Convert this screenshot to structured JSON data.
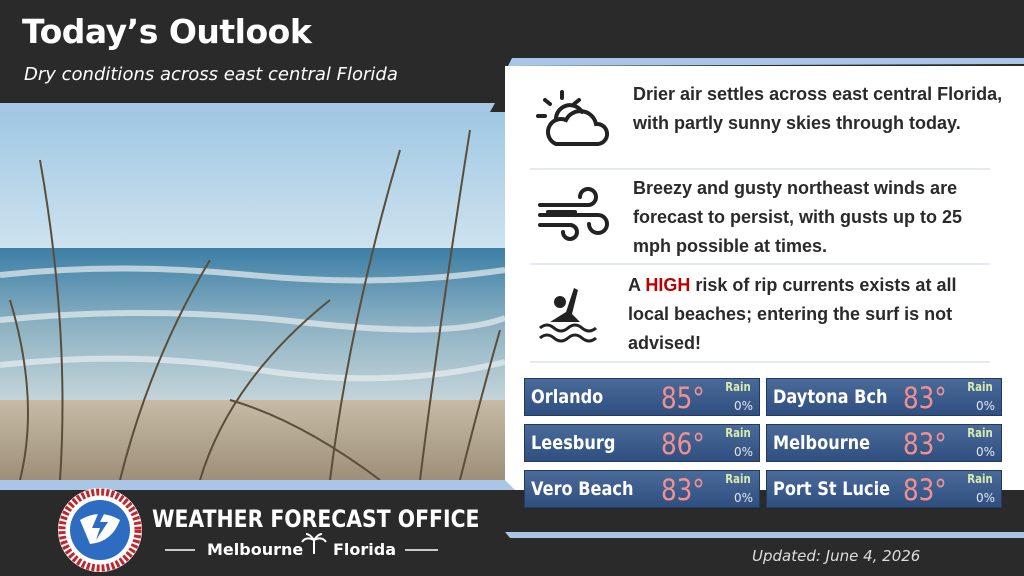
{
  "header": {
    "title": "Today’s Outlook",
    "subtitle": "Dry conditions across east central Florida"
  },
  "statements": [
    {
      "text": "Drier air settles across east central Florida, with partly sunny skies through today."
    },
    {
      "text": "Breezy and gusty northeast winds are forecast to persist, with gusts up to 25 mph possible at times."
    },
    {
      "before": "A ",
      "highlight": "HIGH",
      "after": " risk of rip currents exists at all local beaches; entering the surf is not advised!"
    }
  ],
  "cities": [
    {
      "name": "Orlando",
      "temp": "85°",
      "rain_label": "Rain",
      "rain": "0%"
    },
    {
      "name": "Daytona Bch",
      "temp": "83°",
      "rain_label": "Rain",
      "rain": "0%"
    },
    {
      "name": "Leesburg",
      "temp": "86°",
      "rain_label": "Rain",
      "rain": "0%"
    },
    {
      "name": "Melbourne",
      "temp": "83°",
      "rain_label": "Rain",
      "rain": "0%"
    },
    {
      "name": "Vero Beach",
      "temp": "83°",
      "rain_label": "Rain",
      "rain": "0%"
    },
    {
      "name": "Port St Lucie",
      "temp": "83°",
      "rain_label": "Rain",
      "rain": "0%"
    }
  ],
  "footer": {
    "office": "WEATHER FORECAST OFFICE",
    "city": "Melbourne",
    "state": "Florida",
    "updated": "Updated: June 4, 2026"
  }
}
